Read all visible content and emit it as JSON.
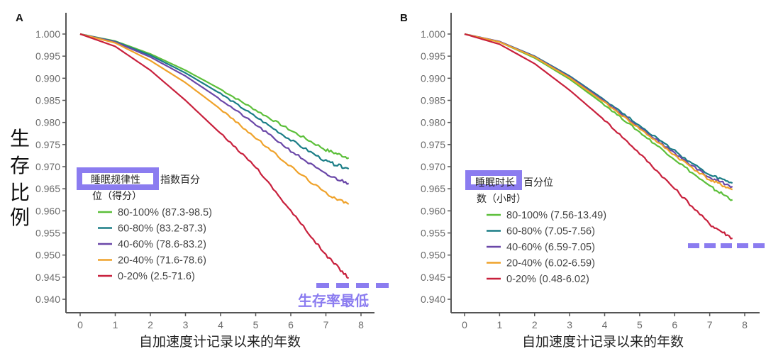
{
  "ylabel_chars": [
    "生",
    "存",
    "比",
    "例"
  ],
  "chart_data": [
    {
      "type": "line",
      "panel": "A",
      "title": "",
      "xlabel": "自加速度计记录以来的年数",
      "ylabel": "生存比例",
      "xlim": [
        0,
        8.3
      ],
      "ylim": [
        0.937,
        1.0035
      ],
      "x_ticks": [
        0,
        1,
        2,
        3,
        4,
        5,
        6,
        7,
        8
      ],
      "y_ticks": [
        1.0,
        0.995,
        0.99,
        0.985,
        0.98,
        0.975,
        0.97,
        0.965,
        0.96,
        0.955,
        0.95,
        0.945,
        0.94
      ],
      "grid": false,
      "legend_position": "bottom-left",
      "legend_title_line1": "睡眠规律性指数百分",
      "legend_title_line1_visible": "指数百分",
      "legend_title_line2": "位（得分）",
      "legend_title_highlight": "睡眠规律性",
      "series": [
        {
          "name": "80-100% (87.3-98.5)",
          "color": "#5cbf3a",
          "x": [
            0,
            1,
            2,
            3,
            4,
            5,
            6,
            7,
            7.65
          ],
          "y": [
            1.0,
            0.9984,
            0.9955,
            0.9918,
            0.9875,
            0.9828,
            0.9782,
            0.9738,
            0.972
          ]
        },
        {
          "name": "60-80% (83.2-87.3)",
          "color": "#1a7d86",
          "x": [
            0,
            1,
            2,
            3,
            4,
            5,
            6,
            7,
            7.65
          ],
          "y": [
            1.0,
            0.9983,
            0.9952,
            0.9912,
            0.9865,
            0.9813,
            0.976,
            0.9712,
            0.9695
          ]
        },
        {
          "name": "40-60% (78.6-83.2)",
          "color": "#6a47a8",
          "x": [
            0,
            1,
            2,
            3,
            4,
            5,
            6,
            7,
            7.65
          ],
          "y": [
            1.0,
            0.9982,
            0.9948,
            0.9905,
            0.9852,
            0.9795,
            0.9736,
            0.9682,
            0.9662
          ]
        },
        {
          "name": "20-40% (71.6-78.6)",
          "color": "#efa22a",
          "x": [
            0,
            1,
            2,
            3,
            4,
            5,
            6,
            7,
            7.65
          ],
          "y": [
            1.0,
            0.998,
            0.994,
            0.989,
            0.983,
            0.9765,
            0.97,
            0.964,
            0.9615
          ]
        },
        {
          "name": "0-20% (2.5-71.6)",
          "color": "#c8203c",
          "x": [
            0,
            1,
            2,
            3,
            4,
            5,
            6,
            7,
            7.65
          ],
          "y": [
            1.0,
            0.9972,
            0.9918,
            0.985,
            0.9775,
            0.97,
            0.96,
            0.95,
            0.9448
          ]
        }
      ],
      "annotation": {
        "text": "生存率最低",
        "color": "#8b7cf0"
      }
    },
    {
      "type": "line",
      "panel": "B",
      "title": "",
      "xlabel": "自加速度计记录以来的年数",
      "ylabel": "",
      "xlim": [
        0,
        8.3
      ],
      "ylim": [
        0.937,
        1.0035
      ],
      "x_ticks": [
        0,
        1,
        2,
        3,
        4,
        5,
        6,
        7,
        8
      ],
      "y_ticks": [
        1.0,
        0.995,
        0.99,
        0.985,
        0.98,
        0.975,
        0.97,
        0.965,
        0.96,
        0.955,
        0.95,
        0.945,
        0.94
      ],
      "grid": false,
      "legend_position": "bottom-left",
      "legend_title_line1": "睡眠时长百分位",
      "legend_title_line1_visible": "百分位",
      "legend_title_line2": "数（小时）",
      "legend_title_highlight": "睡眠时长",
      "series": [
        {
          "name": "80-100% (7.56-13.49)",
          "color": "#5cbf3a",
          "x": [
            0,
            1,
            2,
            3,
            4,
            5,
            6,
            7,
            7.65
          ],
          "y": [
            1.0,
            0.9982,
            0.9946,
            0.9898,
            0.984,
            0.9778,
            0.9717,
            0.9655,
            0.9625
          ]
        },
        {
          "name": "60-80% (7.05-7.56)",
          "color": "#1a7d86",
          "x": [
            0,
            1,
            2,
            3,
            4,
            5,
            6,
            7,
            7.65
          ],
          "y": [
            1.0,
            0.9983,
            0.995,
            0.9905,
            0.9851,
            0.9793,
            0.9735,
            0.968,
            0.9663
          ]
        },
        {
          "name": "40-60% (6.59-7.05)",
          "color": "#6a47a8",
          "x": [
            0,
            1,
            2,
            3,
            4,
            5,
            6,
            7,
            7.65
          ],
          "y": [
            1.0,
            0.9983,
            0.9949,
            0.9903,
            0.9848,
            0.9789,
            0.973,
            0.9675,
            0.9655
          ]
        },
        {
          "name": "20-40% (6.02-6.59)",
          "color": "#efa22a",
          "x": [
            0,
            1,
            2,
            3,
            4,
            5,
            6,
            7,
            7.65
          ],
          "y": [
            1.0,
            0.9982,
            0.9948,
            0.9901,
            0.9845,
            0.9786,
            0.9726,
            0.967,
            0.9648
          ]
        },
        {
          "name": "0-20% (0.48-6.02)",
          "color": "#c8203c",
          "x": [
            0,
            1,
            2,
            3,
            4,
            5,
            6,
            7,
            7.65
          ],
          "y": [
            1.0,
            0.9977,
            0.9933,
            0.9873,
            0.9805,
            0.973,
            0.965,
            0.957,
            0.9538
          ]
        }
      ],
      "annotation": {
        "text": "",
        "color": "#8b7cf0"
      }
    }
  ]
}
